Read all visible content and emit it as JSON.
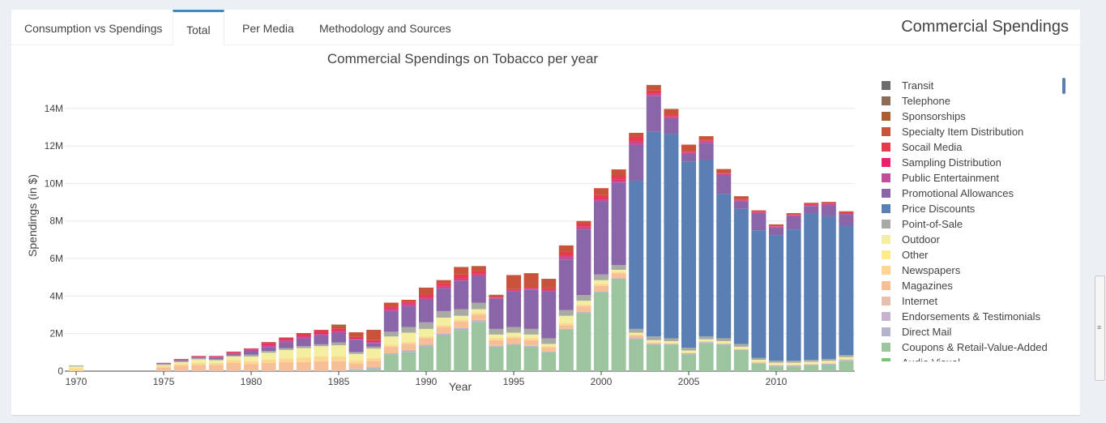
{
  "tabs": [
    {
      "label": "Consumption vs Spendings"
    },
    {
      "label": "Total"
    },
    {
      "label": "Per Media"
    },
    {
      "label": "Methodology and Sources"
    }
  ],
  "panel_title": "Commercial Spendings",
  "chart_data": {
    "type": "bar",
    "stacked": true,
    "title": "Commercial Spendings on Tobacco per year",
    "xlabel": "Year",
    "ylabel": "Spendings (in $)",
    "xlim": [
      1970,
      2014
    ],
    "ylim": [
      0,
      15200000
    ],
    "x_ticks": [
      1970,
      1975,
      1980,
      1985,
      1990,
      1995,
      2000,
      2005,
      2010
    ],
    "y_ticks": [
      0,
      2000000,
      4000000,
      6000000,
      8000000,
      10000000,
      12000000,
      14000000
    ],
    "y_tick_labels": [
      "0",
      "2M",
      "4M",
      "6M",
      "8M",
      "10M",
      "12M",
      "14M"
    ],
    "grid": true,
    "legend_position": "right",
    "years": [
      1970,
      1975,
      1976,
      1977,
      1978,
      1979,
      1980,
      1981,
      1982,
      1983,
      1984,
      1985,
      1986,
      1987,
      1988,
      1989,
      1990,
      1991,
      1992,
      1993,
      1994,
      1995,
      1996,
      1997,
      1998,
      1999,
      2000,
      2001,
      2002,
      2003,
      2004,
      2005,
      2006,
      2007,
      2008,
      2009,
      2010,
      2011,
      2012,
      2013,
      2014
    ],
    "series": [
      {
        "name": "Coupons & Retail-Value-Added",
        "color": "#9bc49f",
        "values": [
          0,
          0,
          0,
          0,
          0,
          0,
          0,
          0,
          0,
          0,
          0,
          0,
          0.05,
          0.1,
          0.9,
          1.0,
          1.3,
          1.9,
          2.2,
          2.6,
          1.3,
          1.4,
          1.3,
          1.0,
          2.2,
          3.1,
          4.2,
          4.9,
          1.7,
          1.4,
          1.4,
          0.9,
          1.5,
          1.4,
          1.1,
          0.4,
          0.25,
          0.25,
          0.3,
          0.35,
          0.55
        ]
      },
      {
        "name": "Direct Mail",
        "color": "#b4b4cc",
        "values": [
          0,
          0,
          0,
          0,
          0,
          0,
          0,
          0,
          0,
          0,
          0,
          0,
          0.05,
          0.1,
          0.05,
          0.1,
          0.1,
          0.1,
          0.1,
          0.1,
          0.05,
          0.05,
          0.05,
          0.05,
          0.05,
          0.05,
          0.05,
          0.05,
          0.05,
          0.05,
          0.05,
          0.05,
          0.05,
          0.05,
          0.05,
          0.05,
          0.05,
          0.05,
          0.05,
          0.05,
          0.05
        ]
      },
      {
        "name": "Endorsements & Testimonials",
        "color": "#c9b1d0",
        "values": [
          0,
          0.03,
          0.03,
          0.03,
          0.03,
          0.03,
          0.03,
          0.03,
          0.03,
          0.03,
          0.03,
          0.03,
          0.02,
          0,
          0,
          0,
          0,
          0,
          0,
          0,
          0,
          0,
          0,
          0,
          0,
          0,
          0,
          0,
          0,
          0,
          0,
          0,
          0,
          0,
          0,
          0,
          0,
          0,
          0,
          0,
          0
        ]
      },
      {
        "name": "Magazines",
        "color": "#f7bf95",
        "values": [
          0,
          0.15,
          0.25,
          0.3,
          0.3,
          0.4,
          0.35,
          0.4,
          0.45,
          0.45,
          0.5,
          0.5,
          0.3,
          0.35,
          0.35,
          0.35,
          0.35,
          0.35,
          0.35,
          0.3,
          0.3,
          0.3,
          0.3,
          0.2,
          0.2,
          0.3,
          0.3,
          0.25,
          0.15,
          0.05,
          0,
          0,
          0,
          0,
          0,
          0,
          0,
          0,
          0,
          0,
          0
        ]
      },
      {
        "name": "Newspapers",
        "color": "#fdd792",
        "values": [
          0.15,
          0.1,
          0.1,
          0.1,
          0.1,
          0.15,
          0.15,
          0.2,
          0.2,
          0.25,
          0.25,
          0.25,
          0.15,
          0.15,
          0.1,
          0.1,
          0.1,
          0.1,
          0.1,
          0.1,
          0.1,
          0.1,
          0.1,
          0.1,
          0.1,
          0.1,
          0.1,
          0.1,
          0.05,
          0.05,
          0.05,
          0.05,
          0.05,
          0.05,
          0.05,
          0.05,
          0.05,
          0.05,
          0.05,
          0.05,
          0.05
        ]
      },
      {
        "name": "Outdoor",
        "color": "#f3eea0",
        "values": [
          0.1,
          0.05,
          0.1,
          0.2,
          0.15,
          0.2,
          0.25,
          0.35,
          0.45,
          0.5,
          0.55,
          0.6,
          0.35,
          0.5,
          0.45,
          0.5,
          0.4,
          0.4,
          0.2,
          0.2,
          0.2,
          0.2,
          0.2,
          0.1,
          0.4,
          0.2,
          0.2,
          0.1,
          0.1,
          0.1,
          0.1,
          0.1,
          0.1,
          0.1,
          0.1,
          0.1,
          0.1,
          0.1,
          0.1,
          0.1,
          0.1
        ]
      },
      {
        "name": "Point-of-Sale",
        "color": "#a8aaa4",
        "values": [
          0.05,
          0.05,
          0.05,
          0.05,
          0.05,
          0.05,
          0.1,
          0.1,
          0.1,
          0.1,
          0.1,
          0.15,
          0.1,
          0.1,
          0.25,
          0.3,
          0.35,
          0.35,
          0.35,
          0.35,
          0.3,
          0.3,
          0.3,
          0.3,
          0.3,
          0.3,
          0.3,
          0.25,
          0.2,
          0.2,
          0.15,
          0.15,
          0.15,
          0.15,
          0.15,
          0.1,
          0.1,
          0.1,
          0.1,
          0.1,
          0.1
        ]
      },
      {
        "name": "Price Discounts",
        "color": "#5a7fb5",
        "values": [
          0,
          0,
          0,
          0,
          0,
          0,
          0,
          0,
          0,
          0,
          0,
          0,
          0,
          0,
          0,
          0,
          0,
          0,
          0,
          0,
          0,
          0,
          0,
          0,
          0,
          0,
          0,
          0,
          7.9,
          10.9,
          10.9,
          9.9,
          9.4,
          7.7,
          7.2,
          6.8,
          6.7,
          7.0,
          7.8,
          7.6,
          6.9
        ]
      },
      {
        "name": "Promotional Allowances",
        "color": "#8a65a8",
        "values": [
          0,
          0.05,
          0.05,
          0.05,
          0.1,
          0.1,
          0.2,
          0.2,
          0.3,
          0.4,
          0.45,
          0.5,
          0.65,
          0.2,
          1.1,
          1.1,
          1.2,
          1.2,
          1.5,
          1.4,
          1.6,
          1.9,
          2.1,
          2.5,
          2.7,
          3.5,
          3.9,
          4.4,
          1.9,
          1.9,
          0.8,
          0.4,
          0.9,
          1.0,
          0.4,
          0.9,
          0.4,
          0.7,
          0.4,
          0.6,
          0.6
        ]
      },
      {
        "name": "Public Entertainment",
        "color": "#c04e9a",
        "values": [
          0,
          0,
          0.02,
          0.02,
          0.02,
          0.03,
          0.05,
          0.1,
          0.1,
          0.1,
          0.1,
          0.1,
          0.05,
          0.05,
          0.1,
          0.1,
          0.1,
          0.1,
          0.1,
          0.1,
          0.05,
          0.05,
          0.05,
          0.05,
          0.15,
          0.1,
          0.1,
          0.1,
          0.15,
          0.1,
          0.1,
          0.1,
          0.1,
          0.05,
          0.05,
          0.05,
          0.05,
          0.05,
          0.05,
          0.05,
          0.05
        ]
      },
      {
        "name": "Sampling Distribution",
        "color": "#e8226d",
        "values": [
          0,
          0.01,
          0.02,
          0.02,
          0.02,
          0.03,
          0.03,
          0.05,
          0.05,
          0.05,
          0.05,
          0.05,
          0.05,
          0.05,
          0.05,
          0.05,
          0.05,
          0.05,
          0.05,
          0.05,
          0.02,
          0.02,
          0.02,
          0.02,
          0.05,
          0.05,
          0.05,
          0.05,
          0.05,
          0.05,
          0.02,
          0.02,
          0.02,
          0.02,
          0.02,
          0.02,
          0.02,
          0.02,
          0.02,
          0.02,
          0.02
        ]
      },
      {
        "name": "Socail Media",
        "color": "#e23c4d",
        "values": [
          0,
          0,
          0.03,
          0.03,
          0.04,
          0.05,
          0.05,
          0.1,
          0.1,
          0.15,
          0.15,
          0.1,
          0.05,
          0.05,
          0.1,
          0.1,
          0.15,
          0.15,
          0.2,
          0.15,
          0.05,
          0.05,
          0.05,
          0.1,
          0.2,
          0.2,
          0.2,
          0.25,
          0.25,
          0.15,
          0.1,
          0.05,
          0.05,
          0.05,
          0.05,
          0.05,
          0.05,
          0.05,
          0.05,
          0.05,
          0.05
        ]
      },
      {
        "name": "Specialty Item Distribution",
        "color": "#c8523a",
        "values": [
          0,
          0,
          0,
          0.01,
          0,
          0,
          0,
          0.02,
          0.02,
          0,
          0.02,
          0.1,
          0.25,
          0.55,
          0.2,
          0.1,
          0.35,
          0.15,
          0.4,
          0.2,
          0.05,
          0.75,
          0.75,
          0.5,
          0.35,
          0.1,
          0.35,
          0.3,
          0.2,
          0.3,
          0.3,
          0.35,
          0.2,
          0.2,
          0.15,
          0.05,
          0.05,
          0.05,
          0.05,
          0.05,
          0.05
        ]
      },
      {
        "name": "Sponsorships",
        "color": "#aa5f32",
        "values": [
          0,
          0,
          0,
          0,
          0,
          0,
          0,
          0,
          0,
          0,
          0,
          0.1,
          0,
          0,
          0,
          0,
          0,
          0,
          0,
          0.05,
          0.05,
          0,
          0,
          0,
          0,
          0,
          0,
          0,
          0,
          0,
          0,
          0,
          0,
          0,
          0,
          0,
          0,
          0,
          0,
          0,
          0
        ]
      },
      {
        "name": "Telephone",
        "color": "#8c6c56",
        "values": [
          0,
          0,
          0,
          0,
          0,
          0,
          0,
          0,
          0,
          0,
          0,
          0,
          0,
          0,
          0,
          0,
          0,
          0,
          0,
          0,
          0,
          0,
          0,
          0,
          0,
          0,
          0,
          0,
          0,
          0,
          0,
          0,
          0,
          0,
          0,
          0,
          0,
          0,
          0,
          0,
          0
        ]
      },
      {
        "name": "Transit",
        "color": "#6c6c6c",
        "values": [
          0,
          0,
          0,
          0,
          0,
          0,
          0,
          0,
          0,
          0,
          0,
          0,
          0,
          0,
          0,
          0,
          0,
          0,
          0,
          0,
          0,
          0,
          0,
          0,
          0,
          0,
          0,
          0,
          0,
          0,
          0,
          0,
          0,
          0,
          0,
          0,
          0,
          0,
          0,
          0,
          0
        ]
      }
    ],
    "value_unit_multiplier": 1000000
  },
  "legend": [
    {
      "name": "Transit",
      "color": "#6c6c6c"
    },
    {
      "name": "Telephone",
      "color": "#8c6c56"
    },
    {
      "name": "Sponsorships",
      "color": "#aa5f32"
    },
    {
      "name": "Specialty Item Distribution",
      "color": "#c8523a"
    },
    {
      "name": "Socail Media",
      "color": "#e23c4d"
    },
    {
      "name": "Sampling Distribution",
      "color": "#e8226d"
    },
    {
      "name": "Public Entertainment",
      "color": "#c04e9a"
    },
    {
      "name": "Promotional Allowances",
      "color": "#8a65a8"
    },
    {
      "name": "Price Discounts",
      "color": "#5a7fb5"
    },
    {
      "name": "Point-of-Sale",
      "color": "#a8aaa4"
    },
    {
      "name": "Outdoor",
      "color": "#f3eea0"
    },
    {
      "name": "Other",
      "color": "#fdeb8e"
    },
    {
      "name": "Newspapers",
      "color": "#fdd792"
    },
    {
      "name": "Magazines",
      "color": "#f7bf95"
    },
    {
      "name": "Internet",
      "color": "#e6bfae"
    },
    {
      "name": "Endorsements & Testimonials",
      "color": "#c9b1d0"
    },
    {
      "name": "Direct Mail",
      "color": "#b4b4cc"
    },
    {
      "name": "Coupons & Retail-Value-Added",
      "color": "#9bc49f"
    },
    {
      "name": "Audio Visual",
      "color": "#7bc27e"
    }
  ]
}
